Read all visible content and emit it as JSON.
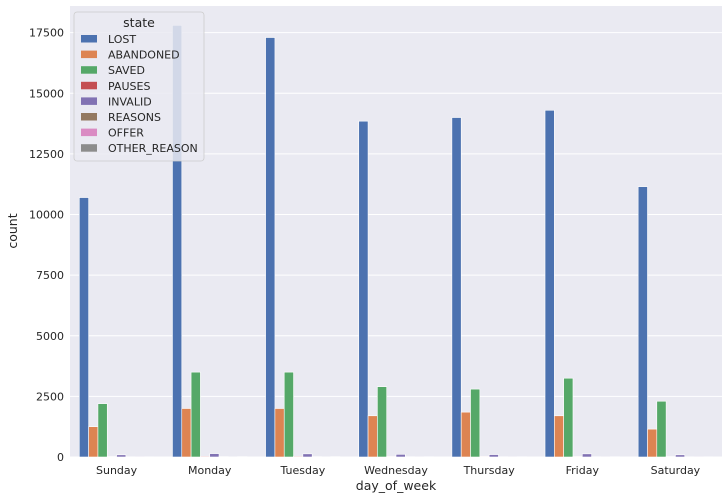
{
  "chart_data": {
    "type": "bar",
    "xlabel": "day_of_week",
    "ylabel": "count",
    "ylim": [
      0,
      18600
    ],
    "yticks": [
      0,
      2500,
      5000,
      7500,
      10000,
      12500,
      15000,
      17500
    ],
    "grid": true,
    "categories": [
      "Sunday",
      "Monday",
      "Tuesday",
      "Wednesday",
      "Thursday",
      "Friday",
      "Saturday"
    ],
    "legend": {
      "title": "state",
      "placement": "top-left"
    },
    "series": [
      {
        "name": "LOST",
        "color": "#4C72B0",
        "values": [
          10700,
          17800,
          17300,
          13850,
          14000,
          14300,
          11150
        ]
      },
      {
        "name": "ABANDONED",
        "color": "#DD8452",
        "values": [
          1250,
          2000,
          2000,
          1700,
          1850,
          1700,
          1150
        ]
      },
      {
        "name": "SAVED",
        "color": "#55A868",
        "values": [
          2200,
          3500,
          3500,
          2900,
          2800,
          3250,
          2300
        ]
      },
      {
        "name": "PAUSES",
        "color": "#C44E52",
        "values": [
          20,
          30,
          30,
          25,
          25,
          25,
          20
        ]
      },
      {
        "name": "INVALID",
        "color": "#8172B3",
        "values": [
          90,
          140,
          130,
          110,
          100,
          130,
          90
        ]
      },
      {
        "name": "REASONS",
        "color": "#937860",
        "values": [
          10,
          15,
          15,
          12,
          12,
          12,
          10
        ]
      },
      {
        "name": "OFFER",
        "color": "#DA8BC3",
        "values": [
          5,
          8,
          8,
          6,
          6,
          6,
          5
        ]
      },
      {
        "name": "OTHER_REASON",
        "color": "#8C8C8C",
        "values": [
          10,
          15,
          15,
          12,
          12,
          12,
          10
        ]
      }
    ]
  }
}
